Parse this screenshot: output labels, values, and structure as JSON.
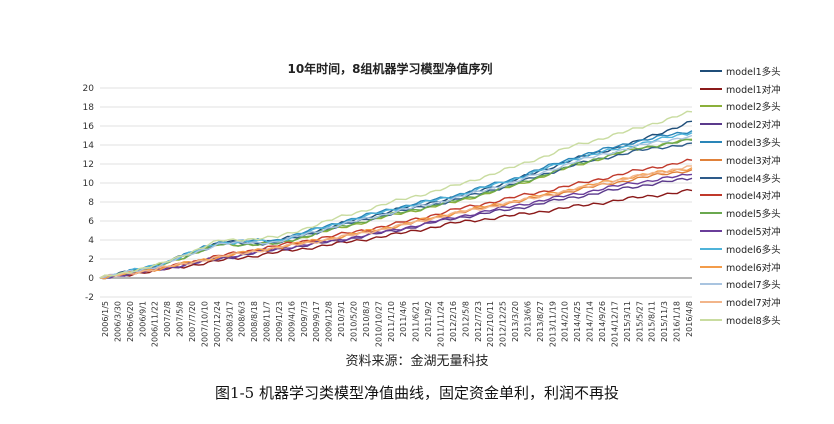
{
  "captions": {
    "source": "资料来源：金湖无量科技",
    "figure": "图1-5 机器学习类模型净值曲线，固定资金单利，利润不再投"
  },
  "chart_data": {
    "type": "line",
    "title": "10年时间，8组机器学习模型净值序列",
    "xlabel": "",
    "ylabel": "",
    "ylim": [
      -2,
      20
    ],
    "yticks": [
      -2,
      0,
      2,
      4,
      6,
      8,
      10,
      12,
      14,
      16,
      18,
      20
    ],
    "grid": true,
    "legend_position": "right",
    "x_tick_labels": [
      "2006/1/5",
      "2006/3/30",
      "2006/6/20",
      "2006/9/1",
      "2006/11/22",
      "2007/2/8",
      "2007/5/8",
      "2007/7/20",
      "2007/10/10",
      "2007/12/24",
      "2008/3/17",
      "2008/6/3",
      "2008/8/18",
      "2008/11/7",
      "2009/1/23",
      "2009/4/16",
      "2009/7/3",
      "2009/9/17",
      "2009/12/8",
      "2010/3/1",
      "2010/5/20",
      "2010/8/3",
      "2010/10/27",
      "2011/1/10",
      "2011/4/6",
      "2011/6/21",
      "2011/9/2",
      "2011/11/24",
      "2012/2/16",
      "2012/5/8",
      "2012/7/23",
      "2012/10/11",
      "2012/12/25",
      "2013/3/20",
      "2013/6/6",
      "2013/8/27",
      "2013/11/19",
      "2014/2/10",
      "2014/4/25",
      "2014/7/14",
      "2014/9/26",
      "2014/12/17",
      "2015/3/11",
      "2015/5/27",
      "2015/8/11",
      "2015/11/3",
      "2016/1/18",
      "2016/4/8"
    ],
    "x_ticks": [
      0,
      1,
      2,
      3,
      4,
      5,
      6,
      7,
      8,
      9,
      10
    ],
    "series": [
      {
        "name": "model1多头",
        "color": "#1f4e79",
        "values": [
          0,
          1.4,
          3.7,
          3.9,
          5.6,
          7.2,
          8.5,
          10.3,
          12.5,
          14.2,
          16.5
        ]
      },
      {
        "name": "model1对冲",
        "color": "#8b1a1a",
        "values": [
          0,
          0.8,
          1.8,
          2.7,
          3.6,
          4.6,
          5.8,
          6.6,
          7.5,
          8.4,
          9.2
        ]
      },
      {
        "name": "model2多头",
        "color": "#8bb03a",
        "values": [
          0,
          1.3,
          3.5,
          3.6,
          5.2,
          6.7,
          8.0,
          9.7,
          11.8,
          13.5,
          14.6
        ]
      },
      {
        "name": "model2对冲",
        "color": "#5b3a8c",
        "values": [
          0,
          0.9,
          2.0,
          3.0,
          3.9,
          5.0,
          6.3,
          7.3,
          8.5,
          9.6,
          10.5
        ]
      },
      {
        "name": "model3多头",
        "color": "#2a86b8",
        "values": [
          0,
          1.4,
          3.8,
          4.0,
          5.8,
          7.4,
          8.7,
          10.5,
          12.7,
          14.3,
          15.5
        ]
      },
      {
        "name": "model3对冲",
        "color": "#e0813a",
        "values": [
          0,
          1.0,
          2.2,
          3.2,
          4.2,
          5.4,
          6.8,
          8.0,
          9.2,
          10.4,
          11.4
        ]
      },
      {
        "name": "model4多头",
        "color": "#2e5b8a",
        "values": [
          0,
          1.3,
          3.6,
          3.7,
          5.4,
          6.9,
          8.2,
          9.9,
          11.9,
          13.3,
          14.2
        ]
      },
      {
        "name": "model4对冲",
        "color": "#c0392b",
        "values": [
          0,
          1.0,
          2.3,
          3.4,
          4.5,
          5.7,
          7.2,
          8.5,
          9.8,
          11.2,
          12.4
        ]
      },
      {
        "name": "model5多头",
        "color": "#6aa84f",
        "values": [
          0,
          1.3,
          3.5,
          3.6,
          5.3,
          6.8,
          8.1,
          9.8,
          11.9,
          13.6,
          14.5
        ]
      },
      {
        "name": "model5对冲",
        "color": "#6a3d9a",
        "values": [
          0,
          0.9,
          2.1,
          3.1,
          4.0,
          5.1,
          6.4,
          7.6,
          8.8,
          10.0,
          10.9
        ]
      },
      {
        "name": "model6多头",
        "color": "#4fb3d9",
        "values": [
          0,
          1.4,
          3.7,
          3.9,
          5.7,
          7.3,
          8.6,
          10.4,
          12.5,
          14.0,
          15.3
        ]
      },
      {
        "name": "model6对冲",
        "color": "#f39c4a",
        "values": [
          0,
          1.0,
          2.2,
          3.3,
          4.3,
          5.5,
          6.9,
          8.1,
          9.4,
          10.7,
          11.6
        ]
      },
      {
        "name": "model7多头",
        "color": "#a9c4e0",
        "values": [
          0,
          1.3,
          3.6,
          3.8,
          5.5,
          7.0,
          8.4,
          10.1,
          12.2,
          13.8,
          15.0
        ]
      },
      {
        "name": "model7对冲",
        "color": "#f2b58a",
        "values": [
          0,
          1.0,
          2.2,
          3.2,
          4.2,
          5.4,
          6.8,
          8.0,
          9.3,
          10.6,
          11.8
        ]
      },
      {
        "name": "model8多头",
        "color": "#c9dca0",
        "values": [
          0,
          1.4,
          3.9,
          4.3,
          6.3,
          8.1,
          9.7,
          11.7,
          13.9,
          15.6,
          17.5
        ]
      }
    ]
  }
}
